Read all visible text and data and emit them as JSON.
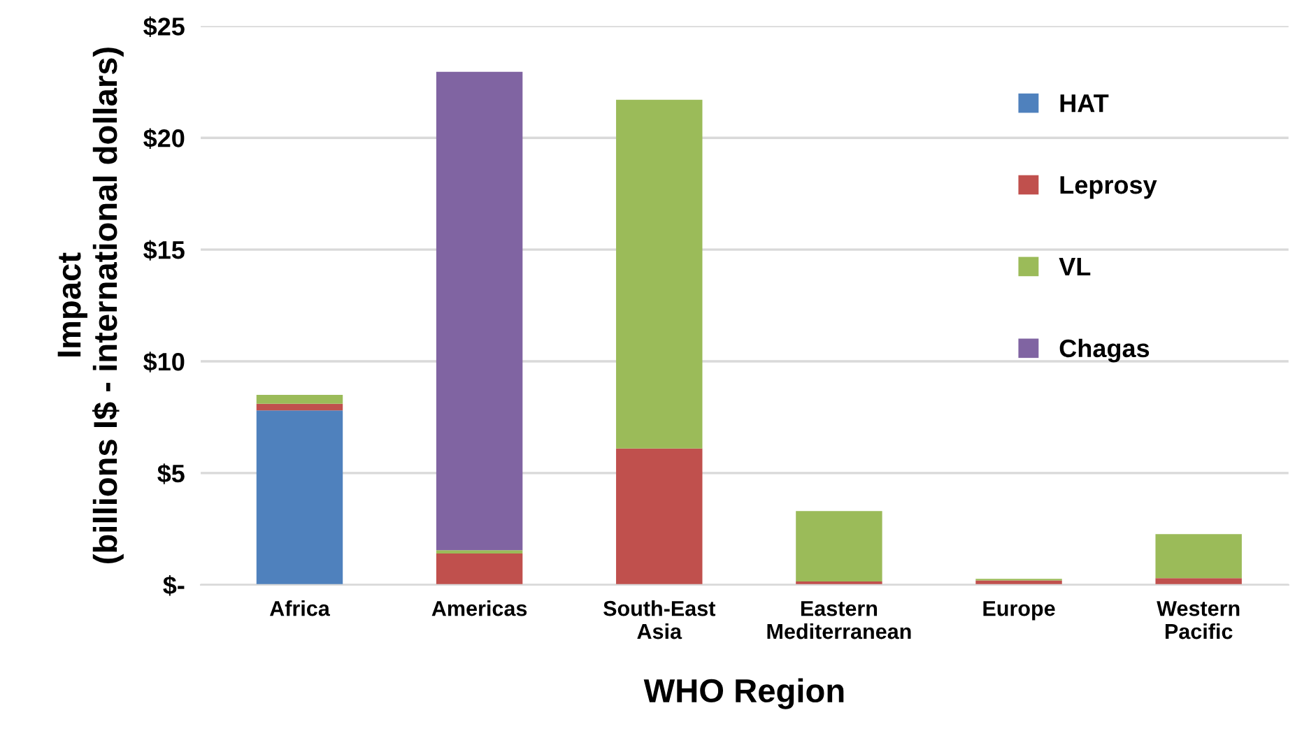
{
  "chart_data": {
    "type": "bar",
    "stacked": true,
    "xlabel": "WHO Region",
    "ylabel": "Impact\n(billions I$ - international dollars)",
    "categories": [
      "Africa",
      "Americas",
      "South-East\nAsia",
      "Eastern\nMediterranean",
      "Europe",
      "Western\nPacific"
    ],
    "series": [
      {
        "name": "HAT",
        "color": "#4f81bd",
        "values": [
          7.8,
          0,
          0,
          0,
          0,
          0
        ]
      },
      {
        "name": "Leprosy",
        "color": "#c0504d",
        "values": [
          0.3,
          1.4,
          6.1,
          0.15,
          0.2,
          0.3
        ]
      },
      {
        "name": "VL",
        "color": "#9bbb59",
        "values": [
          0.4,
          0.15,
          15.6,
          3.15,
          0.07,
          1.97
        ]
      },
      {
        "name": "Chagas",
        "color": "#8064a2",
        "values": [
          0,
          21.4,
          0,
          0,
          0,
          0
        ]
      }
    ],
    "ylim": [
      0,
      25
    ],
    "yticks": [
      {
        "value": 0,
        "label": "$-"
      },
      {
        "value": 5,
        "label": "$5"
      },
      {
        "value": 10,
        "label": "$10"
      },
      {
        "value": 15,
        "label": "$15"
      },
      {
        "value": 20,
        "label": "$20"
      },
      {
        "value": 25,
        "label": "$25"
      }
    ],
    "grid": "y",
    "legend": "top right"
  }
}
